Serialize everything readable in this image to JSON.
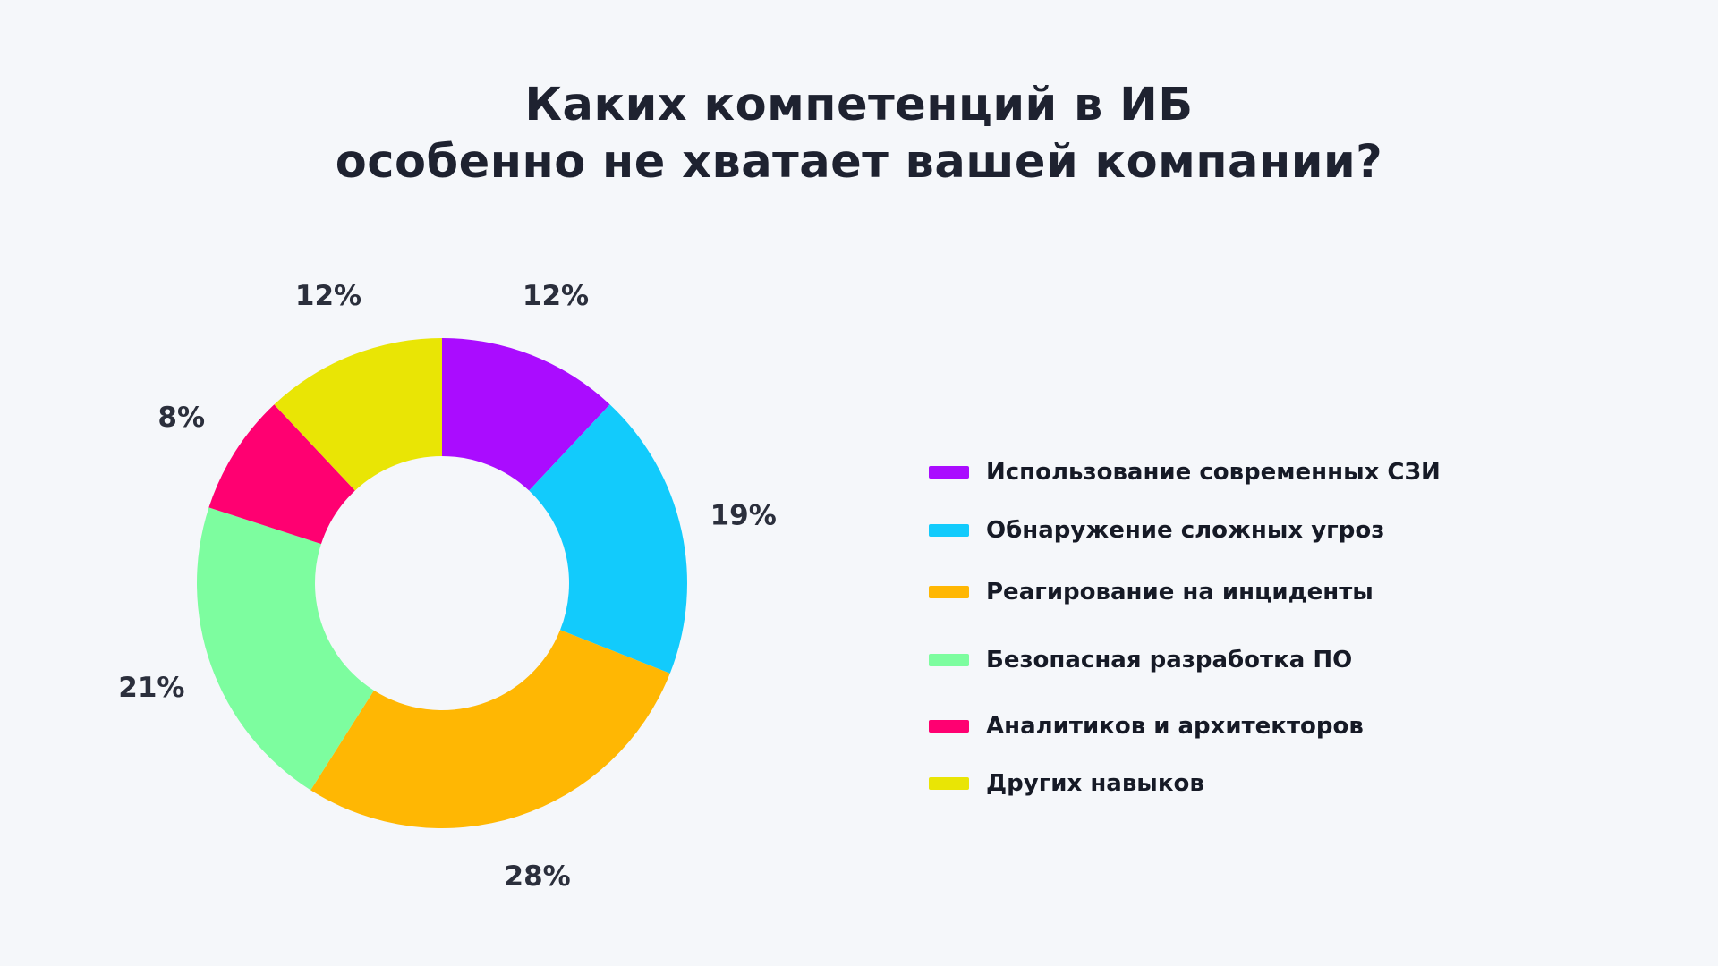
{
  "chart_data": {
    "type": "pie",
    "variant": "donut",
    "title_lines": [
      "Каких компетенций в ИБ",
      "особенно не хватает вашей компании?"
    ],
    "categories": [
      "Использование современных СЗИ",
      "Обнаружение сложных угроз",
      "Реагирование на инциденты",
      "Безопасная разработка ПО",
      "Аналитиков и архитекторов",
      "Других навыков"
    ],
    "values": [
      12,
      19,
      28,
      21,
      8,
      12
    ],
    "value_labels": [
      "12%",
      "19%",
      "28%",
      "21%",
      "8%",
      "12%"
    ],
    "unit": "%",
    "colors": [
      "#aa0cff",
      "#12cbfc",
      "#ffb703",
      "#7dfd9f",
      "#ff0071",
      "#e9e505"
    ],
    "legend_position": "right",
    "start_angle": "top (12 o'clock)",
    "direction": "clockwise"
  }
}
